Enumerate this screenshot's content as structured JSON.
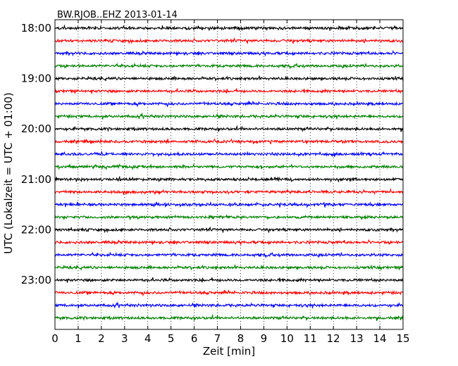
{
  "chart_data": {
    "type": "line",
    "title": "BW.RJOB..EHZ 2013-01-14",
    "xlabel": "Zeit  [min]",
    "ylabel": "UTC (Lokalzeit = UTC + 01:00)",
    "xlim": [
      0,
      15
    ],
    "x_ticks": [
      0,
      1,
      2,
      3,
      4,
      5,
      6,
      7,
      8,
      9,
      10,
      11,
      12,
      13,
      14,
      15
    ],
    "x_tick_labels": [
      "0",
      "1",
      "2",
      "3",
      "4",
      "5",
      "6",
      "7",
      "8",
      "9",
      "10",
      "11",
      "12",
      "13",
      "14",
      "15"
    ],
    "y_tick_labels": [
      "18:00",
      "19:00",
      "20:00",
      "21:00",
      "22:00",
      "23:00"
    ],
    "grid": "vertical dotted",
    "color_cycle": [
      "#000000",
      "#ff0000",
      "#0000ff",
      "#008000"
    ],
    "traces": [
      {
        "start": "18:00",
        "color": "#000000"
      },
      {
        "start": "18:15",
        "color": "#ff0000"
      },
      {
        "start": "18:30",
        "color": "#0000ff"
      },
      {
        "start": "18:45",
        "color": "#008000"
      },
      {
        "start": "19:00",
        "color": "#000000"
      },
      {
        "start": "19:15",
        "color": "#ff0000"
      },
      {
        "start": "19:30",
        "color": "#0000ff"
      },
      {
        "start": "19:45",
        "color": "#008000"
      },
      {
        "start": "20:00",
        "color": "#000000"
      },
      {
        "start": "20:15",
        "color": "#ff0000"
      },
      {
        "start": "20:30",
        "color": "#0000ff"
      },
      {
        "start": "20:45",
        "color": "#008000"
      },
      {
        "start": "21:00",
        "color": "#000000"
      },
      {
        "start": "21:15",
        "color": "#ff0000"
      },
      {
        "start": "21:30",
        "color": "#0000ff"
      },
      {
        "start": "21:45",
        "color": "#008000"
      },
      {
        "start": "22:00",
        "color": "#000000"
      },
      {
        "start": "22:15",
        "color": "#ff0000"
      },
      {
        "start": "22:30",
        "color": "#0000ff"
      },
      {
        "start": "22:45",
        "color": "#008000"
      },
      {
        "start": "23:00",
        "color": "#000000"
      },
      {
        "start": "23:15",
        "color": "#ff0000"
      },
      {
        "start": "23:30",
        "color": "#0000ff"
      },
      {
        "start": "23:45",
        "color": "#008000"
      }
    ]
  }
}
